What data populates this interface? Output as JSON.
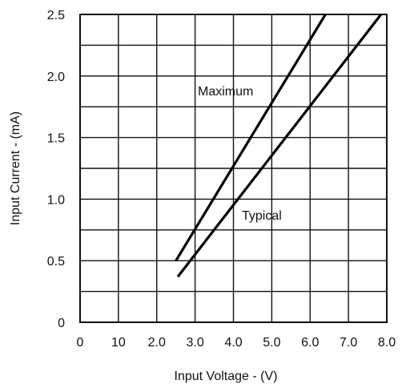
{
  "chart_data": {
    "type": "line",
    "xlabel": "Input Voltage - (V)",
    "ylabel": "Input Current - (mA)",
    "xlim": [
      0,
      8.0
    ],
    "ylim": [
      0,
      2.5
    ],
    "x_tick_labels": [
      "0",
      "10",
      "2.0",
      "3.0",
      "4.0",
      "5.0",
      "6.0",
      "7.0",
      "8.0"
    ],
    "y_tick_labels": [
      "0",
      "0.5",
      "1.0",
      "1.5",
      "2.0",
      "2.5"
    ],
    "grid": true,
    "series": [
      {
        "name": "Maximum",
        "x": [
          2.5,
          6.4
        ],
        "y": [
          0.5,
          2.5
        ]
      },
      {
        "name": "Typical",
        "x": [
          2.55,
          7.85
        ],
        "y": [
          0.37,
          2.5
        ]
      }
    ]
  }
}
